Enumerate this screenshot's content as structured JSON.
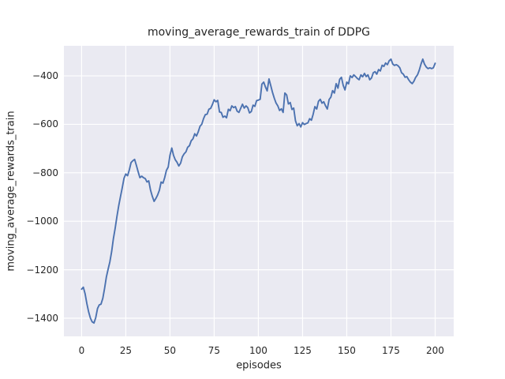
{
  "chart_data": {
    "type": "line",
    "title": "moving_average_rewards_train of DDPG",
    "xlabel": "episodes",
    "ylabel": "moving_average_rewards_train",
    "legend": false,
    "grid": true,
    "xlim": [
      -10,
      210.5
    ],
    "ylim": [
      -1475,
      -276
    ],
    "xticks": [
      0,
      25,
      50,
      75,
      100,
      125,
      150,
      175,
      200
    ],
    "yticks": [
      -400,
      -600,
      -800,
      -1000,
      -1200,
      -1400
    ],
    "style": {
      "plot_bg": "#eaeaf2",
      "grid_color": "#ffffff",
      "text_color": "#262626",
      "line_color": "#4c72b0",
      "line_width": 1.9
    },
    "series": [
      {
        "name": "moving_average_rewards_train",
        "color": "#4c72b0",
        "x0": 0,
        "dx": 1,
        "values": [
          -1280,
          -1272,
          -1300,
          -1340,
          -1375,
          -1400,
          -1415,
          -1420,
          -1398,
          -1360,
          -1345,
          -1342,
          -1318,
          -1278,
          -1230,
          -1198,
          -1168,
          -1125,
          -1072,
          -1028,
          -980,
          -935,
          -898,
          -862,
          -822,
          -805,
          -812,
          -788,
          -758,
          -750,
          -745,
          -770,
          -796,
          -820,
          -814,
          -820,
          -824,
          -838,
          -833,
          -872,
          -897,
          -918,
          -906,
          -892,
          -872,
          -838,
          -843,
          -820,
          -790,
          -776,
          -728,
          -698,
          -728,
          -746,
          -757,
          -772,
          -760,
          -734,
          -722,
          -714,
          -695,
          -688,
          -668,
          -660,
          -639,
          -648,
          -630,
          -608,
          -600,
          -576,
          -560,
          -558,
          -538,
          -534,
          -518,
          -499,
          -507,
          -501,
          -549,
          -551,
          -571,
          -566,
          -573,
          -538,
          -544,
          -524,
          -531,
          -527,
          -546,
          -551,
          -534,
          -517,
          -533,
          -524,
          -531,
          -553,
          -547,
          -521,
          -526,
          -502,
          -500,
          -497,
          -434,
          -426,
          -446,
          -462,
          -413,
          -440,
          -469,
          -492,
          -512,
          -524,
          -543,
          -536,
          -551,
          -471,
          -479,
          -516,
          -510,
          -539,
          -533,
          -586,
          -606,
          -597,
          -611,
          -593,
          -601,
          -597,
          -594,
          -577,
          -583,
          -558,
          -527,
          -537,
          -505,
          -497,
          -513,
          -507,
          -524,
          -537,
          -498,
          -488,
          -461,
          -471,
          -432,
          -451,
          -414,
          -406,
          -440,
          -458,
          -426,
          -433,
          -400,
          -407,
          -396,
          -403,
          -411,
          -416,
          -396,
          -404,
          -390,
          -403,
          -396,
          -416,
          -409,
          -387,
          -383,
          -393,
          -374,
          -380,
          -356,
          -361,
          -347,
          -354,
          -338,
          -331,
          -351,
          -357,
          -354,
          -358,
          -367,
          -387,
          -393,
          -406,
          -403,
          -416,
          -426,
          -432,
          -422,
          -406,
          -396,
          -377,
          -351,
          -331,
          -352,
          -364,
          -370,
          -367,
          -370,
          -367,
          -348
        ]
      }
    ]
  }
}
